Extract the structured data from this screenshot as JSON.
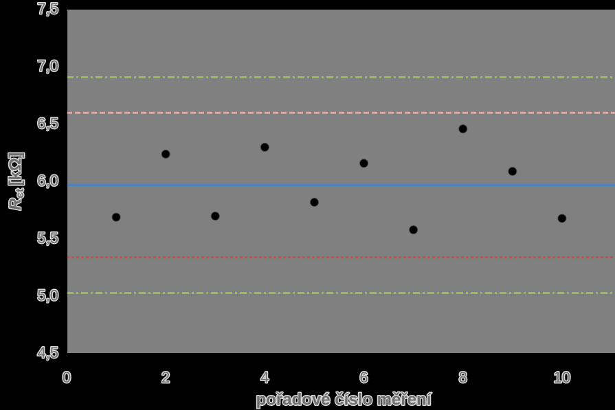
{
  "chart_data": {
    "type": "scatter",
    "xlabel": "pořadové číslo měření",
    "ylabel": {
      "main": "R",
      "sub": "ct",
      "unit": "[kΩ]"
    },
    "x": [
      1,
      2,
      3,
      4,
      5,
      6,
      7,
      8,
      9,
      10
    ],
    "series": [
      {
        "color": "#000000",
        "values": [
          5.69,
          6.24,
          5.7,
          6.3,
          5.82,
          6.16,
          5.58,
          6.46,
          6.09,
          5.68
        ]
      }
    ],
    "lines": [
      {
        "value": 6.91,
        "color": "#9bbb59",
        "style": "dashdot"
      },
      {
        "value": 6.6,
        "color": "#e6a4a0",
        "style": "dash"
      },
      {
        "value": 5.97,
        "color": "#4f81bd",
        "style": "solid"
      },
      {
        "value": 5.34,
        "color": "#c0504d",
        "style": "dot"
      },
      {
        "value": 5.03,
        "color": "#9bbb59",
        "style": "dashdot"
      }
    ],
    "xlim": [
      0,
      11
    ],
    "xticks": [
      0,
      2,
      4,
      6,
      8,
      10
    ],
    "ylim": [
      4.5,
      7.5
    ],
    "yticks": [
      {
        "value": 4.5,
        "label": "4,5"
      },
      {
        "value": 5.0,
        "label": "5,0"
      },
      {
        "value": 5.5,
        "label": "5,5"
      },
      {
        "value": 6.0,
        "label": "6,0"
      },
      {
        "value": 6.5,
        "label": "6,5"
      },
      {
        "value": 7.0,
        "label": "7,0"
      },
      {
        "value": 7.5,
        "label": "7,5"
      }
    ],
    "plot_background": "#808080"
  }
}
